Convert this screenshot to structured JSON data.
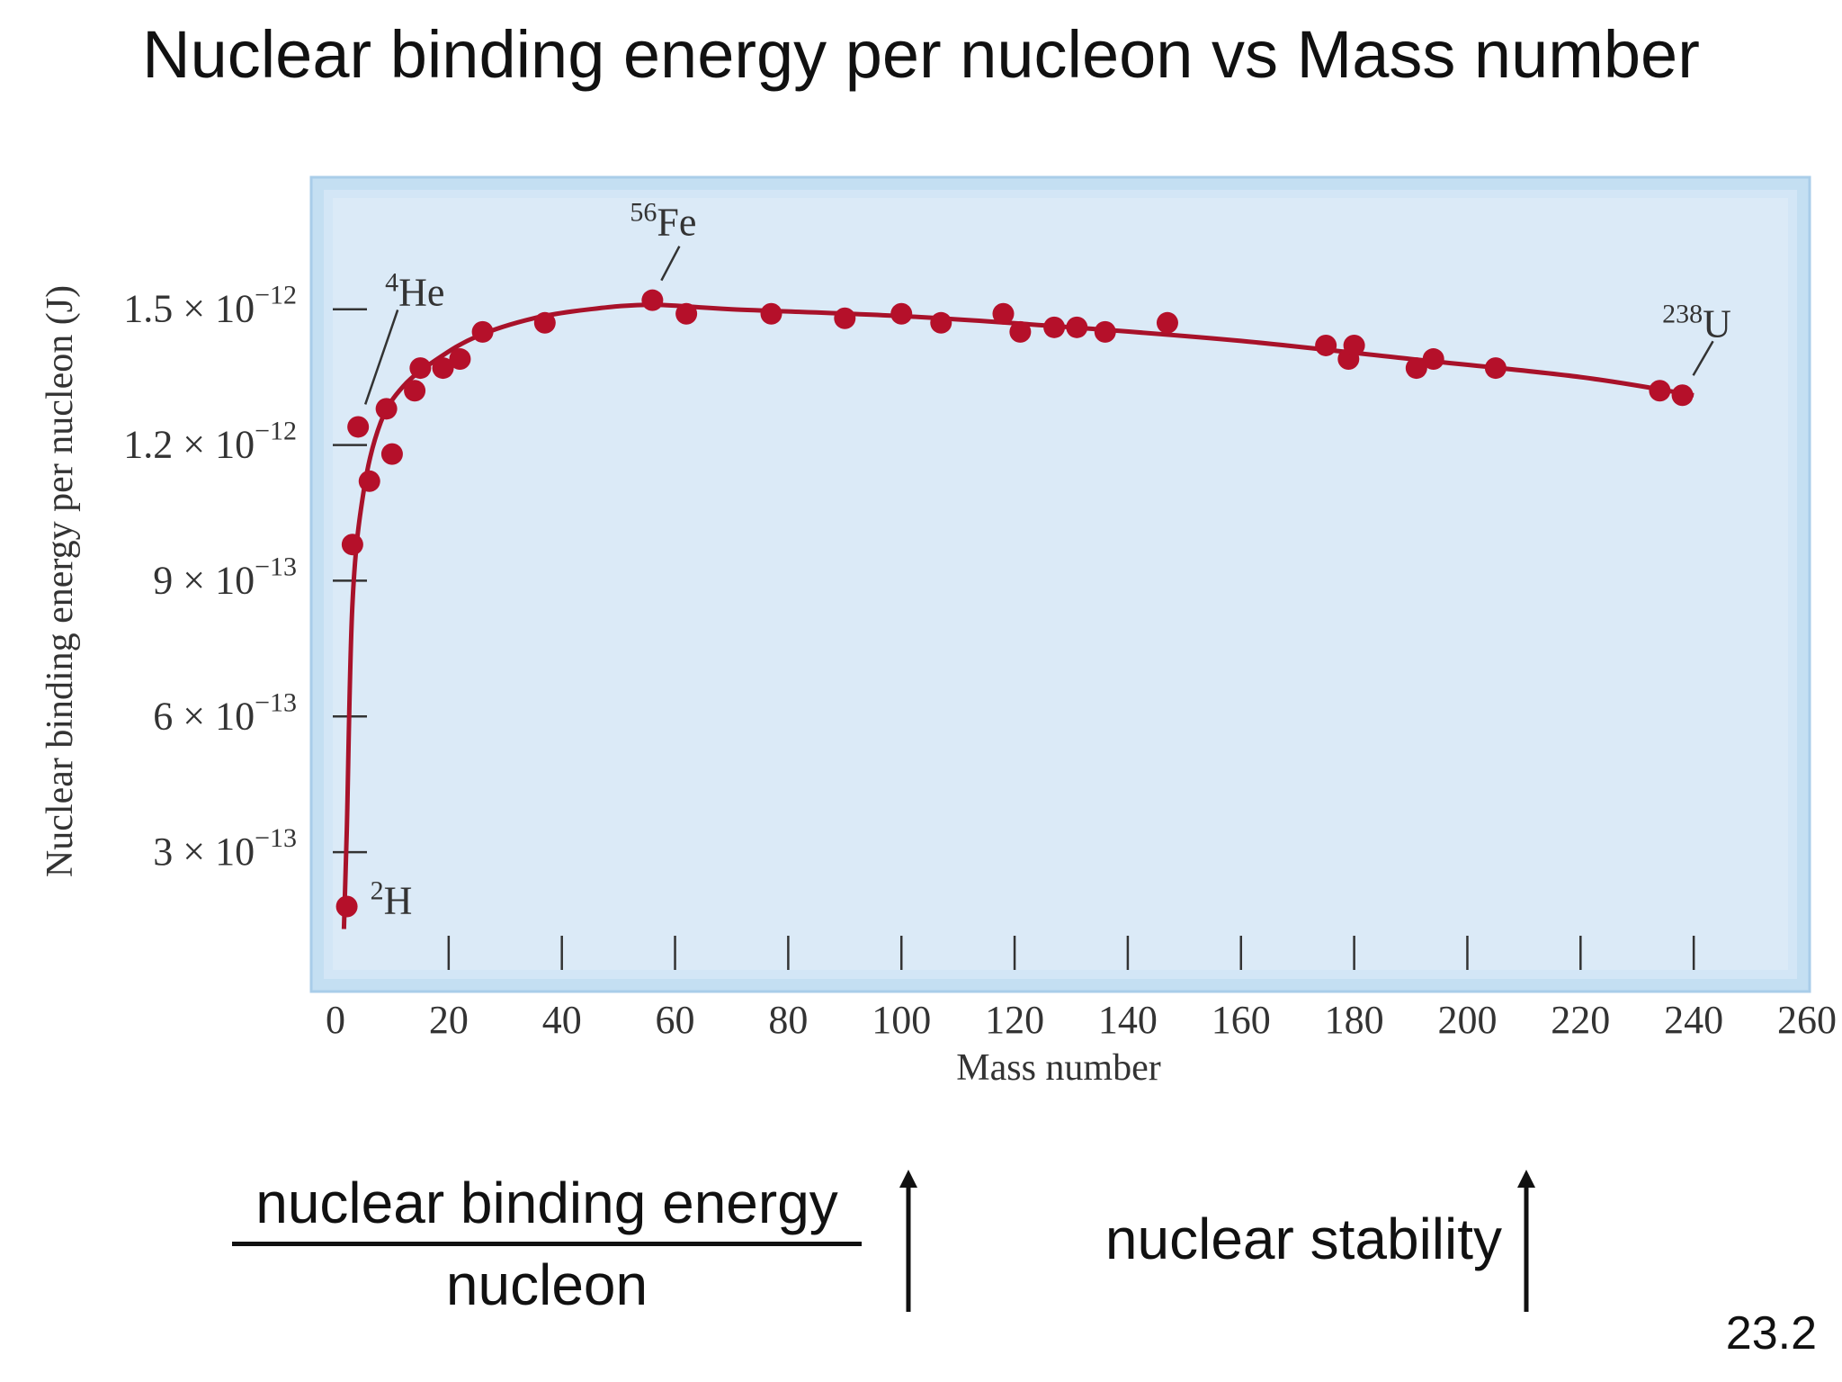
{
  "slide": {
    "title": "Nuclear binding energy per nucleon vs Mass number",
    "fraction_numerator": "nuclear binding energy",
    "fraction_denominator": "nucleon",
    "stability_label": "nuclear stability",
    "page_number": "23.2"
  },
  "chart_data": {
    "type": "scatter",
    "xlabel": "Mass number",
    "ylabel": "Nuclear binding energy per nucleon (J)",
    "xlim": [
      0,
      260
    ],
    "ylim": [
      0,
      1.75e-12
    ],
    "x_ticks": [
      "0",
      "20",
      "40",
      "60",
      "80",
      "100",
      "120",
      "140",
      "160",
      "180",
      "200",
      "220",
      "240",
      "260"
    ],
    "y_ticks": [
      {
        "value": 3e-13,
        "mantissa": "3",
        "exponent": "−13"
      },
      {
        "value": 6e-13,
        "mantissa": "6",
        "exponent": "−13"
      },
      {
        "value": 9e-13,
        "mantissa": "9",
        "exponent": "−13"
      },
      {
        "value": 1.2e-12,
        "mantissa": "1.2",
        "exponent": "−12"
      },
      {
        "value": 1.5e-12,
        "mantissa": "1.5",
        "exponent": "−12"
      }
    ],
    "colors": {
      "marker": "#b5102a",
      "curve": "#a8122a",
      "plot_bg": "#dbeaf7",
      "frame": "#b9d8ee"
    },
    "points": [
      {
        "x": 2,
        "y": 1.8e-13
      },
      {
        "x": 3,
        "y": 9.8e-13
      },
      {
        "x": 4,
        "y": 1.24e-12
      },
      {
        "x": 6,
        "y": 1.12e-12
      },
      {
        "x": 9,
        "y": 1.28e-12
      },
      {
        "x": 10,
        "y": 1.18e-12
      },
      {
        "x": 14,
        "y": 1.32e-12
      },
      {
        "x": 15,
        "y": 1.37e-12
      },
      {
        "x": 19,
        "y": 1.37e-12
      },
      {
        "x": 22,
        "y": 1.39e-12
      },
      {
        "x": 26,
        "y": 1.45e-12
      },
      {
        "x": 37,
        "y": 1.47e-12
      },
      {
        "x": 56,
        "y": 1.52e-12
      },
      {
        "x": 62,
        "y": 1.49e-12
      },
      {
        "x": 77,
        "y": 1.49e-12
      },
      {
        "x": 90,
        "y": 1.48e-12
      },
      {
        "x": 100,
        "y": 1.49e-12
      },
      {
        "x": 107,
        "y": 1.47e-12
      },
      {
        "x": 118,
        "y": 1.49e-12
      },
      {
        "x": 121,
        "y": 1.45e-12
      },
      {
        "x": 127,
        "y": 1.46e-12
      },
      {
        "x": 131,
        "y": 1.46e-12
      },
      {
        "x": 136,
        "y": 1.45e-12
      },
      {
        "x": 147,
        "y": 1.47e-12
      },
      {
        "x": 175,
        "y": 1.42e-12
      },
      {
        "x": 179,
        "y": 1.39e-12
      },
      {
        "x": 180,
        "y": 1.42e-12
      },
      {
        "x": 191,
        "y": 1.37e-12
      },
      {
        "x": 194,
        "y": 1.39e-12
      },
      {
        "x": 205,
        "y": 1.37e-12
      },
      {
        "x": 234,
        "y": 1.32e-12
      },
      {
        "x": 238,
        "y": 1.31e-12
      }
    ],
    "curve": [
      {
        "x": 1.5,
        "y": 1.3e-13
      },
      {
        "x": 2,
        "y": 3.5e-13
      },
      {
        "x": 3,
        "y": 8.5e-13
      },
      {
        "x": 5,
        "y": 1.1e-12
      },
      {
        "x": 8,
        "y": 1.25e-12
      },
      {
        "x": 12,
        "y": 1.33e-12
      },
      {
        "x": 18,
        "y": 1.39e-12
      },
      {
        "x": 25,
        "y": 1.44e-12
      },
      {
        "x": 35,
        "y": 1.48e-12
      },
      {
        "x": 45,
        "y": 1.5e-12
      },
      {
        "x": 56,
        "y": 1.51e-12
      },
      {
        "x": 70,
        "y": 1.5e-12
      },
      {
        "x": 100,
        "y": 1.485e-12
      },
      {
        "x": 130,
        "y": 1.46e-12
      },
      {
        "x": 160,
        "y": 1.43e-12
      },
      {
        "x": 190,
        "y": 1.39e-12
      },
      {
        "x": 220,
        "y": 1.35e-12
      },
      {
        "x": 240,
        "y": 1.31e-12
      }
    ],
    "annotations": [
      {
        "mass": "2",
        "symbol": "H",
        "x": 2,
        "y": 1.8e-13
      },
      {
        "mass": "4",
        "symbol": "He",
        "x": 4,
        "y": 1.24e-12
      },
      {
        "mass": "56",
        "symbol": "Fe",
        "x": 56,
        "y": 1.52e-12
      },
      {
        "mass": "238",
        "symbol": "U",
        "x": 238,
        "y": 1.31e-12
      }
    ]
  }
}
